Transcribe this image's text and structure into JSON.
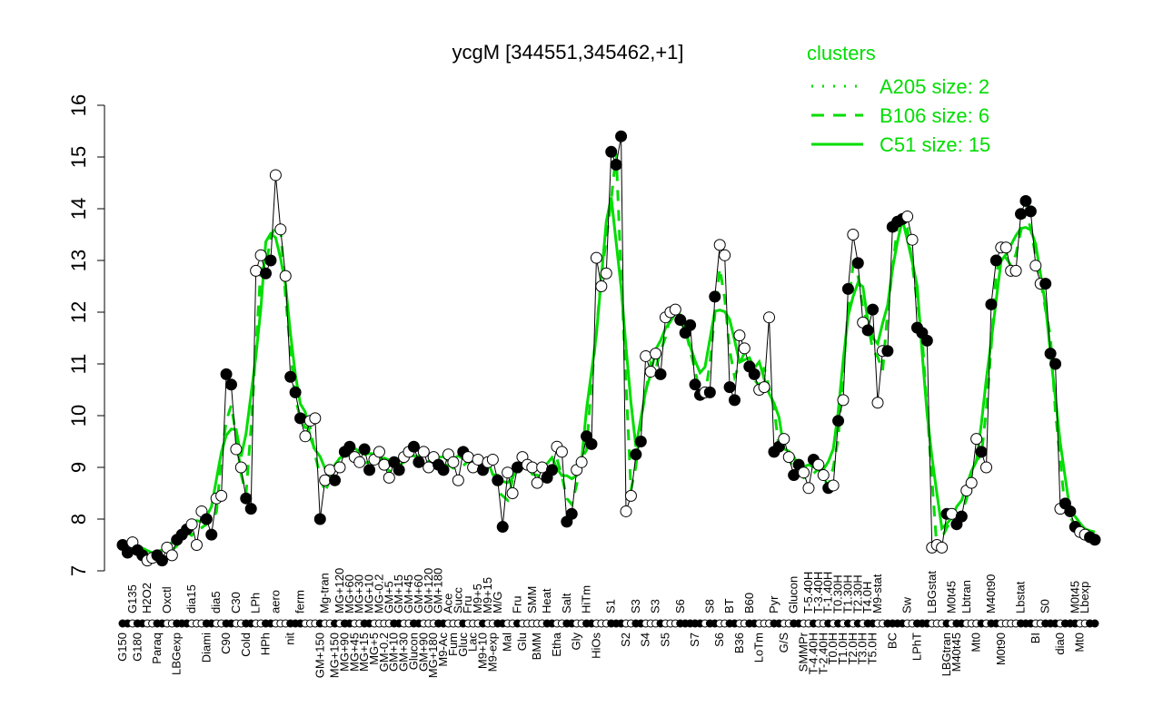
{
  "chart_data": {
    "type": "line",
    "title": "ycgM [344551,345462,+1]",
    "ylim": [
      7,
      16
    ],
    "yticks": [
      7,
      8,
      9,
      10,
      11,
      12,
      13,
      14,
      15,
      16
    ],
    "legend": {
      "title": "clusters",
      "position": "top-right",
      "entries": [
        {
          "label": "A205 size: 2",
          "style": "dotted"
        },
        {
          "label": "B106 size: 6",
          "style": "dashed"
        },
        {
          "label": "C51 size: 15",
          "style": "solid"
        }
      ]
    },
    "colors": {
      "cluster": "#00dd00",
      "data": "#000000"
    },
    "points": [
      [
        "G150",
        7.5,
        1
      ],
      [
        "G150",
        7.35,
        1
      ],
      [
        "G135",
        7.55,
        0
      ],
      [
        "G180",
        7.4,
        1
      ],
      [
        "G180",
        7.3,
        1
      ],
      [
        "H2O2",
        7.2,
        0
      ],
      [
        "H2O2",
        7.25,
        0
      ],
      [
        "Paraq",
        7.3,
        1
      ],
      [
        "Paraq",
        7.2,
        1
      ],
      [
        "Oxctl",
        7.45,
        0
      ],
      [
        "Oxctl",
        7.3,
        0
      ],
      [
        "LBGexp",
        7.6,
        1
      ],
      [
        "LBGexp",
        7.7,
        1
      ],
      [
        "LBGexp",
        7.8,
        1
      ],
      [
        "dia15",
        7.9,
        0
      ],
      [
        "dia15",
        7.5,
        0
      ],
      [
        "dia15",
        8.15,
        0
      ],
      [
        "Diami",
        8.0,
        1
      ],
      [
        "Diami",
        7.7,
        1
      ],
      [
        "dia5",
        8.4,
        0
      ],
      [
        "dia5",
        8.45,
        0
      ],
      [
        "C90",
        10.8,
        1
      ],
      [
        "C90",
        10.6,
        1
      ],
      [
        "C30",
        9.35,
        0
      ],
      [
        "C30",
        9.0,
        0
      ],
      [
        "Cold",
        8.4,
        1
      ],
      [
        "Cold",
        8.2,
        1
      ],
      [
        "LPh",
        12.8,
        0
      ],
      [
        "LPh",
        13.1,
        0
      ],
      [
        "HPh",
        12.75,
        1
      ],
      [
        "HPh",
        13.0,
        1
      ],
      [
        "aero",
        14.65,
        0
      ],
      [
        "aero",
        13.6,
        0
      ],
      [
        "aero",
        12.7,
        0
      ],
      [
        "nit",
        10.75,
        1
      ],
      [
        "nit",
        10.45,
        1
      ],
      [
        "ferm",
        9.95,
        1
      ],
      [
        "ferm",
        9.6,
        0
      ],
      [
        "ferm",
        9.9,
        0
      ],
      [
        "ferm",
        9.95,
        0
      ],
      [
        "GM+150",
        8.0,
        1
      ],
      [
        "Mg-tran",
        8.75,
        0
      ],
      [
        "Mg-tran",
        8.95,
        0
      ],
      [
        "MG+150",
        8.75,
        1
      ],
      [
        "MG+120",
        9.0,
        0
      ],
      [
        "MG+90",
        9.3,
        1
      ],
      [
        "MG+60",
        9.4,
        1
      ],
      [
        "MG+45",
        9.2,
        0
      ],
      [
        "MG+30",
        9.1,
        0
      ],
      [
        "MG+15",
        9.35,
        1
      ],
      [
        "MG+10",
        8.95,
        1
      ],
      [
        "MG+5",
        9.15,
        0
      ],
      [
        "MG-0.2",
        9.3,
        0
      ],
      [
        "GM-0.2",
        9.05,
        0
      ],
      [
        "GM+5",
        8.8,
        0
      ],
      [
        "GM+10",
        9.1,
        1
      ],
      [
        "GM+15",
        8.95,
        1
      ],
      [
        "GM+30",
        9.2,
        0
      ],
      [
        "GM+45",
        9.3,
        0
      ],
      [
        "Glucon",
        9.4,
        1
      ],
      [
        "GM+60",
        9.1,
        1
      ],
      [
        "GM+90",
        9.3,
        0
      ],
      [
        "GM+120",
        9.0,
        0
      ],
      [
        "MG+180",
        9.2,
        0
      ],
      [
        "GM+180",
        9.05,
        1
      ],
      [
        "M9-Ac",
        8.95,
        1
      ],
      [
        "Ace",
        9.25,
        0
      ],
      [
        "Fum",
        9.1,
        0
      ],
      [
        "Succ",
        8.75,
        0
      ],
      [
        "Gluc",
        9.3,
        1
      ],
      [
        "Fru",
        9.2,
        0
      ],
      [
        "Lac",
        9.0,
        0
      ],
      [
        "M9+5",
        9.15,
        0
      ],
      [
        "M9+10",
        8.95,
        1
      ],
      [
        "M9+15",
        9.1,
        0
      ],
      [
        "M9-exp",
        9.15,
        0
      ],
      [
        "M/G",
        8.75,
        1
      ],
      [
        "M/G",
        7.85,
        1
      ],
      [
        "Mal",
        8.9,
        0
      ],
      [
        "Mal",
        8.5,
        0
      ],
      [
        "Fru",
        9.0,
        1
      ],
      [
        "Glu",
        9.2,
        0
      ],
      [
        "Glu",
        9.05,
        0
      ],
      [
        "SMM",
        9.0,
        0
      ],
      [
        "BMM",
        8.7,
        0
      ],
      [
        "BMM",
        9.0,
        0
      ],
      [
        "Heat",
        8.8,
        1
      ],
      [
        "Heat",
        8.95,
        1
      ],
      [
        "Etha",
        9.4,
        0
      ],
      [
        "Etha",
        9.3,
        0
      ],
      [
        "Salt",
        7.95,
        1
      ],
      [
        "Salt",
        8.1,
        1
      ],
      [
        "Gly",
        8.95,
        0
      ],
      [
        "Gly",
        9.1,
        0
      ],
      [
        "HiTm",
        9.6,
        1
      ],
      [
        "HiTm",
        9.45,
        1
      ],
      [
        "HiOs",
        13.05,
        0
      ],
      [
        "HiOs",
        12.5,
        0
      ],
      [
        "HiOs",
        12.75,
        0
      ],
      [
        "S1",
        15.1,
        1
      ],
      [
        "S1",
        14.85,
        1
      ],
      [
        "S1",
        15.4,
        1
      ],
      [
        "S2",
        8.15,
        0
      ],
      [
        "S2",
        8.45,
        0
      ],
      [
        "S3",
        9.25,
        1
      ],
      [
        "S3",
        9.5,
        1
      ],
      [
        "S4",
        11.15,
        0
      ],
      [
        "S4",
        10.85,
        0
      ],
      [
        "S3",
        11.2,
        0
      ],
      [
        "S3",
        10.8,
        1
      ],
      [
        "S5",
        11.9,
        0
      ],
      [
        "S5",
        12.0,
        0
      ],
      [
        "S5",
        12.05,
        0
      ],
      [
        "S6",
        11.85,
        1
      ],
      [
        "S6",
        11.6,
        1
      ],
      [
        "S6",
        11.75,
        1
      ],
      [
        "S7",
        10.6,
        1
      ],
      [
        "S7",
        10.4,
        1
      ],
      [
        "S7",
        10.45,
        0
      ],
      [
        "S8",
        10.45,
        1
      ],
      [
        "S8",
        12.3,
        1
      ],
      [
        "S6",
        13.3,
        0
      ],
      [
        "S6",
        13.1,
        0
      ],
      [
        "BT",
        10.55,
        1
      ],
      [
        "BT",
        10.3,
        1
      ],
      [
        "B36",
        11.55,
        0
      ],
      [
        "B36",
        11.3,
        0
      ],
      [
        "B60",
        10.95,
        1
      ],
      [
        "B60",
        10.8,
        1
      ],
      [
        "LoTm",
        10.5,
        0
      ],
      [
        "LoTm",
        10.55,
        0
      ],
      [
        "LoTm",
        11.9,
        0
      ],
      [
        "Pyr",
        9.3,
        1
      ],
      [
        "Pyr",
        9.4,
        1
      ],
      [
        "G/S",
        9.55,
        0
      ],
      [
        "G/S",
        9.2,
        0
      ],
      [
        "Glucon",
        8.85,
        1
      ],
      [
        "Glucon",
        9.05,
        1
      ],
      [
        "SMMPr",
        8.9,
        0
      ],
      [
        "T-5.40H",
        8.6,
        0
      ],
      [
        "T-4.40H",
        9.15,
        1
      ],
      [
        "T-3.40H",
        9.05,
        0
      ],
      [
        "T-2.40H",
        8.85,
        0
      ],
      [
        "T-1.40H",
        8.6,
        1
      ],
      [
        "T0.0H",
        8.65,
        0
      ],
      [
        "T0.30H",
        9.9,
        1
      ],
      [
        "T1.0H",
        10.3,
        0
      ],
      [
        "T1.30H",
        12.45,
        1
      ],
      [
        "T2.0H",
        13.5,
        0
      ],
      [
        "T2.30H",
        12.95,
        1
      ],
      [
        "T3.0H",
        11.8,
        0
      ],
      [
        "T4.0H",
        11.65,
        1
      ],
      [
        "T5.0H",
        12.05,
        1
      ],
      [
        "M9-stat",
        10.25,
        0
      ],
      [
        "M9-stat",
        11.25,
        0
      ],
      [
        "M9-stat",
        11.25,
        1
      ],
      [
        "BC",
        13.65,
        1
      ],
      [
        "BC",
        13.75,
        1
      ],
      [
        "BC",
        13.8,
        1
      ],
      [
        "Sw",
        13.85,
        0
      ],
      [
        "Sw",
        13.4,
        0
      ],
      [
        "LPhT",
        11.7,
        1
      ],
      [
        "LPhT",
        11.6,
        1
      ],
      [
        "LPhT",
        11.45,
        1
      ],
      [
        "LBGstat",
        7.45,
        0
      ],
      [
        "LBGstat",
        7.5,
        0
      ],
      [
        "LBGstat",
        7.45,
        0
      ],
      [
        "LBGtran",
        8.1,
        1
      ],
      [
        "M0t45",
        8.1,
        0
      ],
      [
        "M40t45",
        7.9,
        1
      ],
      [
        "M40t45",
        8.05,
        1
      ],
      [
        "Lbtran",
        8.55,
        0
      ],
      [
        "Lbtran",
        8.7,
        0
      ],
      [
        "Mt0",
        9.55,
        0
      ],
      [
        "Mt0",
        9.3,
        1
      ],
      [
        "Mt0",
        9.0,
        0
      ],
      [
        "M40t90",
        12.15,
        1
      ],
      [
        "M40t90",
        13.0,
        1
      ],
      [
        "M0t90",
        13.25,
        0
      ],
      [
        "M0t90",
        13.25,
        0
      ],
      [
        "M0t90",
        12.8,
        0
      ],
      [
        "M0t90",
        12.8,
        0
      ],
      [
        "Lbstat",
        13.9,
        1
      ],
      [
        "Lbstat",
        14.15,
        1
      ],
      [
        "Lbstat",
        13.95,
        1
      ],
      [
        "BI",
        12.9,
        0
      ],
      [
        "BI",
        12.55,
        0
      ],
      [
        "S0",
        12.55,
        1
      ],
      [
        "S0",
        11.2,
        1
      ],
      [
        "S0",
        11.0,
        1
      ],
      [
        "dia0",
        8.2,
        0
      ],
      [
        "dia0",
        8.3,
        1
      ],
      [
        "dia0",
        8.15,
        1
      ],
      [
        "M0t45",
        7.85,
        1
      ],
      [
        "Mt0",
        7.75,
        0
      ],
      [
        "Lbexp",
        7.7,
        0
      ],
      [
        "Lbexp",
        7.65,
        1
      ],
      [
        "Lbexp",
        7.6,
        1
      ]
    ]
  }
}
